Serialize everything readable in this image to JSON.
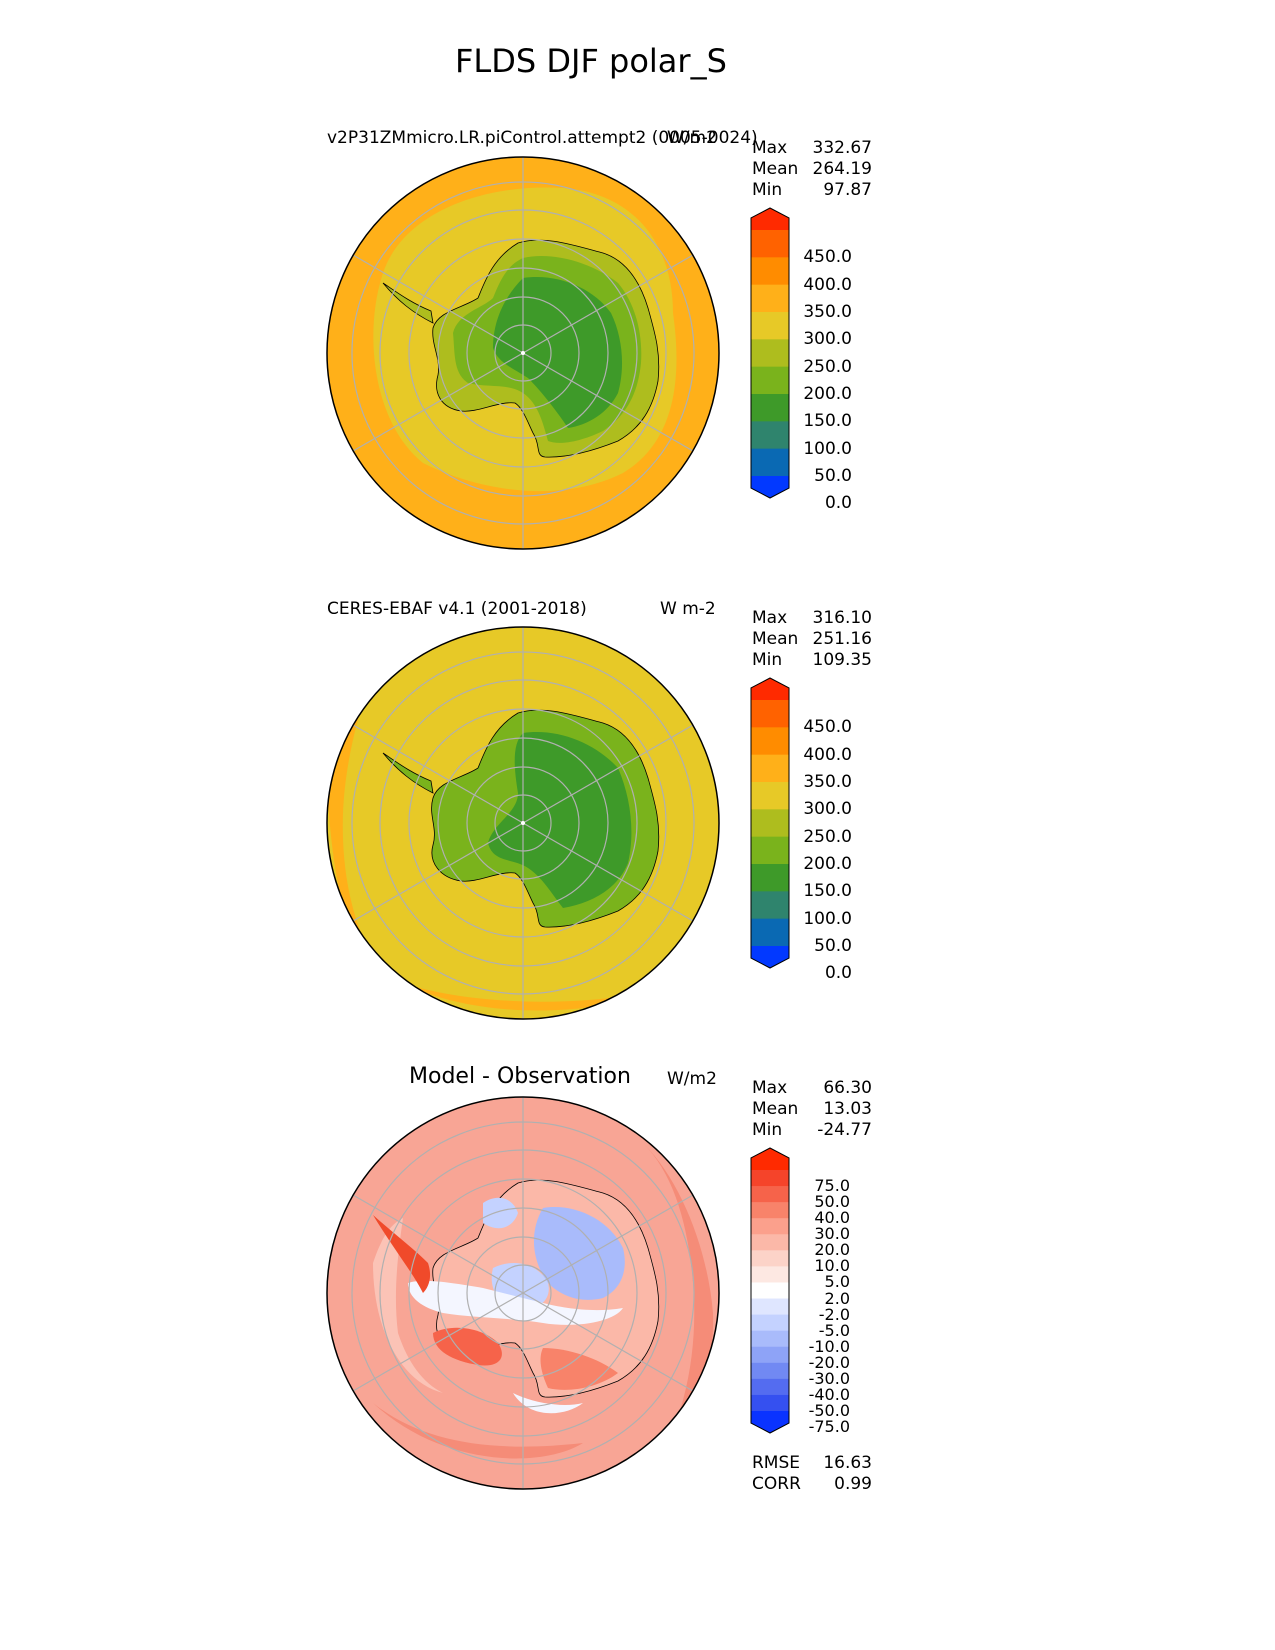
{
  "page": {
    "title": "FLDS DJF polar_S"
  },
  "chart_data": [
    {
      "type": "heatmap",
      "projection": "south polar stereographic",
      "title": "v2P31ZMmicro.LR.piControl.attempt2 (0005-0024)",
      "units": "W/m2",
      "stats": {
        "max_label": "Max",
        "max": "332.67",
        "mean_label": "Mean",
        "mean": "264.19",
        "min_label": "Min",
        "min": "97.87"
      },
      "colorbar": {
        "ticks": [
          "450.0",
          "400.0",
          "350.0",
          "300.0",
          "250.0",
          "200.0",
          "150.0",
          "100.0",
          "50.0",
          "0.0"
        ],
        "colors": [
          "#ff2a00",
          "#ff6200",
          "#ff8c00",
          "#ffb019",
          "#e7c927",
          "#aebd1e",
          "#7ab31c",
          "#3e9a29",
          "#2f846d",
          "#0a69b3",
          "#0239ff"
        ],
        "extend": "both"
      },
      "fields": {
        "ocean": "#ffb019",
        "ocean_inner": "#e7c927",
        "coast": "#aebd1e",
        "ice": "#7ab31c",
        "interior": "#3e9a29"
      },
      "grid": true
    },
    {
      "type": "heatmap",
      "projection": "south polar stereographic",
      "title": "CERES-EBAF v4.1 (2001-2018)",
      "units": "W m-2",
      "stats": {
        "max_label": "Max",
        "max": "316.10",
        "mean_label": "Mean",
        "mean": "251.16",
        "min_label": "Min",
        "min": "109.35"
      },
      "colorbar": {
        "ticks": [
          "450.0",
          "400.0",
          "350.0",
          "300.0",
          "250.0",
          "200.0",
          "150.0",
          "100.0",
          "50.0",
          "0.0"
        ],
        "colors": [
          "#ff2a00",
          "#ff6200",
          "#ff8c00",
          "#ffb019",
          "#e7c927",
          "#aebd1e",
          "#7ab31c",
          "#3e9a29",
          "#2f846d",
          "#0a69b3",
          "#0239ff"
        ],
        "extend": "both"
      },
      "fields": {
        "ocean": "#e7c927",
        "ocean_outer": "#ffb019",
        "coast": "#7ab31c",
        "interior": "#3e9a29"
      },
      "grid": true
    },
    {
      "type": "heatmap",
      "projection": "south polar stereographic",
      "title": "Model - Observation",
      "units": "W/m2",
      "stats": {
        "max_label": "Max",
        "max": "66.30",
        "mean_label": "Mean",
        "mean": "13.03",
        "min_label": "Min",
        "min": "-24.77"
      },
      "colorbar": {
        "ticks": [
          "75.0",
          "50.0",
          "40.0",
          "30.0",
          "20.0",
          "10.0",
          "5.0",
          "2.0",
          "-2.0",
          "-5.0",
          "-10.0",
          "-20.0",
          "-30.0",
          "-40.0",
          "-50.0",
          "-75.0"
        ],
        "colors": [
          "#ff2a00",
          "#f5442a",
          "#f6634a",
          "#f8836a",
          "#fba08c",
          "#fbb8a8",
          "#fcd3c8",
          "#fde8e2",
          "#ffffff",
          "#dfe6ff",
          "#c4d2ff",
          "#a9bbfb",
          "#8ea3f7",
          "#7189f3",
          "#546cf0",
          "#3550f0",
          "#0a33ff"
        ],
        "extend": "both"
      },
      "fields": {
        "ocean": "#f8a595",
        "ocean_outer": "#f58c78",
        "positive_strong": "#f04a2a",
        "negative": "#a9bbfb",
        "near_zero": "#f4f6ff"
      },
      "extra_stats": {
        "rmse_label": "RMSE",
        "rmse": "16.63",
        "corr_label": "CORR",
        "corr": "0.99"
      },
      "grid": true
    }
  ]
}
